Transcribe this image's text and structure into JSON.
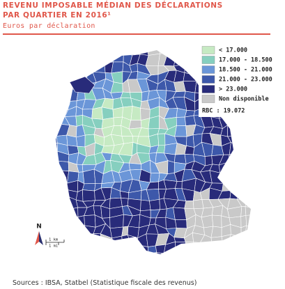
{
  "header": {
    "title_line1": "REVENU IMPOSABLE MÉDIAN DES DÉCLARATIONS",
    "title_line2": "PAR QUARTIER EN 2016¹",
    "subtitle": "Euros par déclaration"
  },
  "legend": {
    "items": [
      {
        "label": "< 17.000",
        "color": "#c6eac3"
      },
      {
        "label": "17.000 - 18.500",
        "color": "#86cfbf"
      },
      {
        "label": "18.500 - 21.000",
        "color": "#6b96d8"
      },
      {
        "label": "21.000 - 23.000",
        "color": "#3d58aa"
      },
      {
        "label": "> 23.000",
        "color": "#282b7a"
      },
      {
        "label": "Non disponible",
        "color": "#c9c9c9"
      }
    ],
    "summary": "RBC : 19.072"
  },
  "scale": {
    "north": "N",
    "km": "1 km",
    "mi": "1 mi"
  },
  "source": "Sources : IBSA, Statbel (Statistique fiscale des revenus)"
}
